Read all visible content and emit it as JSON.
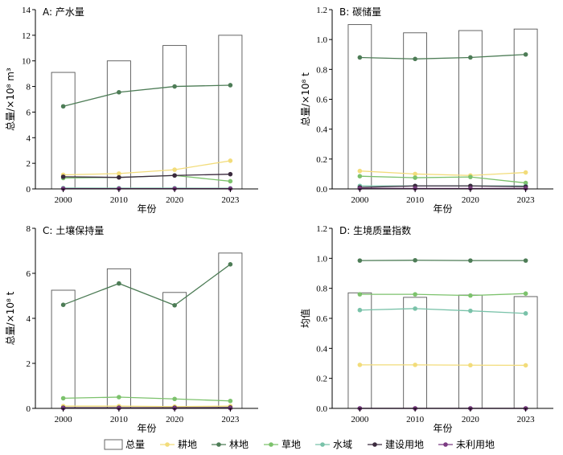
{
  "colors": {
    "total_bar": "#555555",
    "cropland": "#f2dc7a",
    "forest": "#4d7c56",
    "grassland": "#7cc26c",
    "water": "#79c2a9",
    "construction": "#3b2a3e",
    "unused": "#7b3a82"
  },
  "legend": [
    {
      "key": "total_bar",
      "label": "总量",
      "kind": "bar"
    },
    {
      "key": "cropland",
      "label": "耕地",
      "kind": "line"
    },
    {
      "key": "forest",
      "label": "林地",
      "kind": "line"
    },
    {
      "key": "grassland",
      "label": "草地",
      "kind": "line"
    },
    {
      "key": "water",
      "label": "水域",
      "kind": "line"
    },
    {
      "key": "construction",
      "label": "建设用地",
      "kind": "line"
    },
    {
      "key": "unused",
      "label": "未利用地",
      "kind": "line"
    }
  ],
  "chart_data": [
    {
      "id": "A",
      "type": "bar",
      "title": "A: 产水量",
      "xlabel": "年份",
      "ylabel": "总量/×10⁸ m³",
      "categories": [
        "2000",
        "2010",
        "2020",
        "2023"
      ],
      "ylim": [
        0,
        14
      ],
      "yticks": [
        0,
        2,
        4,
        6,
        8,
        10,
        12,
        14
      ],
      "tick_decimals": 0,
      "bar_series": {
        "name": "总量",
        "values": [
          9.1,
          10.0,
          11.2,
          12.0
        ]
      },
      "series": [
        {
          "name": "耕地",
          "color_key": "cropland",
          "values": [
            1.1,
            1.2,
            1.5,
            2.2
          ]
        },
        {
          "name": "林地",
          "color_key": "forest",
          "values": [
            6.45,
            7.55,
            8.0,
            8.1
          ]
        },
        {
          "name": "草地",
          "color_key": "grassland",
          "values": [
            0.85,
            0.9,
            1.05,
            0.6
          ]
        },
        {
          "name": "水域",
          "color_key": "water",
          "values": [
            0.07,
            0.06,
            0.06,
            0.05
          ]
        },
        {
          "name": "建设用地",
          "color_key": "construction",
          "values": [
            0.95,
            0.9,
            1.05,
            1.15
          ]
        },
        {
          "name": "未利用地",
          "color_key": "unused",
          "values": [
            0.02,
            0.02,
            0.02,
            0.02
          ]
        }
      ]
    },
    {
      "id": "B",
      "type": "bar",
      "title": "B: 碳储量",
      "xlabel": "年份",
      "ylabel": "总量/×10⁸ t",
      "categories": [
        "2000",
        "2010",
        "2020",
        "2023"
      ],
      "ylim": [
        0,
        1.2
      ],
      "yticks": [
        0,
        0.2,
        0.4,
        0.6,
        0.8,
        1.0,
        1.2
      ],
      "tick_decimals": 1,
      "bar_series": {
        "name": "总量",
        "values": [
          1.1,
          1.045,
          1.06,
          1.07
        ]
      },
      "series": [
        {
          "name": "耕地",
          "color_key": "cropland",
          "values": [
            0.12,
            0.1,
            0.09,
            0.11
          ]
        },
        {
          "name": "林地",
          "color_key": "forest",
          "values": [
            0.88,
            0.87,
            0.88,
            0.9
          ]
        },
        {
          "name": "草地",
          "color_key": "grassland",
          "values": [
            0.085,
            0.075,
            0.08,
            0.04
          ]
        },
        {
          "name": "水域",
          "color_key": "water",
          "values": [
            0.02,
            0.02,
            0.02,
            0.02
          ]
        },
        {
          "name": "建设用地",
          "color_key": "construction",
          "values": [
            0.01,
            0.02,
            0.02,
            0.015
          ]
        },
        {
          "name": "未利用地",
          "color_key": "unused",
          "values": [
            0.003,
            0.003,
            0.003,
            0.003
          ]
        }
      ]
    },
    {
      "id": "C",
      "type": "bar",
      "title": "C: 土壤保持量",
      "xlabel": "年份",
      "ylabel": "总量/×10⁸ t",
      "categories": [
        "2000",
        "2010",
        "2020",
        "2023"
      ],
      "ylim": [
        0,
        8
      ],
      "yticks": [
        0,
        2,
        4,
        6,
        8
      ],
      "tick_decimals": 0,
      "bar_series": {
        "name": "总量",
        "values": [
          5.25,
          6.2,
          5.15,
          6.9
        ]
      },
      "series": [
        {
          "name": "耕地",
          "color_key": "cropland",
          "values": [
            0.1,
            0.1,
            0.08,
            0.1
          ]
        },
        {
          "name": "林地",
          "color_key": "forest",
          "values": [
            4.6,
            5.55,
            4.58,
            6.4
          ]
        },
        {
          "name": "草地",
          "color_key": "grassland",
          "values": [
            0.45,
            0.5,
            0.42,
            0.33
          ]
        },
        {
          "name": "水域",
          "color_key": "water",
          "values": [
            0.02,
            0.02,
            0.02,
            0.02
          ]
        },
        {
          "name": "建设用地",
          "color_key": "construction",
          "values": [
            0.03,
            0.03,
            0.03,
            0.04
          ]
        },
        {
          "name": "未利用地",
          "color_key": "unused",
          "values": [
            0.01,
            0.01,
            0.01,
            0.01
          ]
        }
      ]
    },
    {
      "id": "D",
      "type": "bar",
      "title": "D: 生境质量指数",
      "xlabel": "年份",
      "ylabel": "均值",
      "categories": [
        "2000",
        "2010",
        "2020",
        "2023"
      ],
      "ylim": [
        0,
        1.2
      ],
      "yticks": [
        0,
        0.2,
        0.4,
        0.6,
        0.8,
        1.0,
        1.2
      ],
      "tick_decimals": 1,
      "bar_series": {
        "name": "总量",
        "values": [
          0.77,
          0.74,
          0.755,
          0.745
        ]
      },
      "series": [
        {
          "name": "耕地",
          "color_key": "cropland",
          "values": [
            0.29,
            0.29,
            0.288,
            0.287
          ]
        },
        {
          "name": "林地",
          "color_key": "forest",
          "values": [
            0.985,
            0.987,
            0.985,
            0.985
          ]
        },
        {
          "name": "草地",
          "color_key": "grassland",
          "values": [
            0.76,
            0.76,
            0.752,
            0.765
          ]
        },
        {
          "name": "水域",
          "color_key": "water",
          "values": [
            0.655,
            0.665,
            0.65,
            0.633
          ]
        },
        {
          "name": "建设用地",
          "color_key": "construction",
          "values": [
            0.0,
            0.0,
            0.0,
            0.0
          ]
        },
        {
          "name": "未利用地",
          "color_key": "unused",
          "values": [
            0.0,
            0.0,
            0.0,
            0.0
          ]
        }
      ]
    }
  ]
}
